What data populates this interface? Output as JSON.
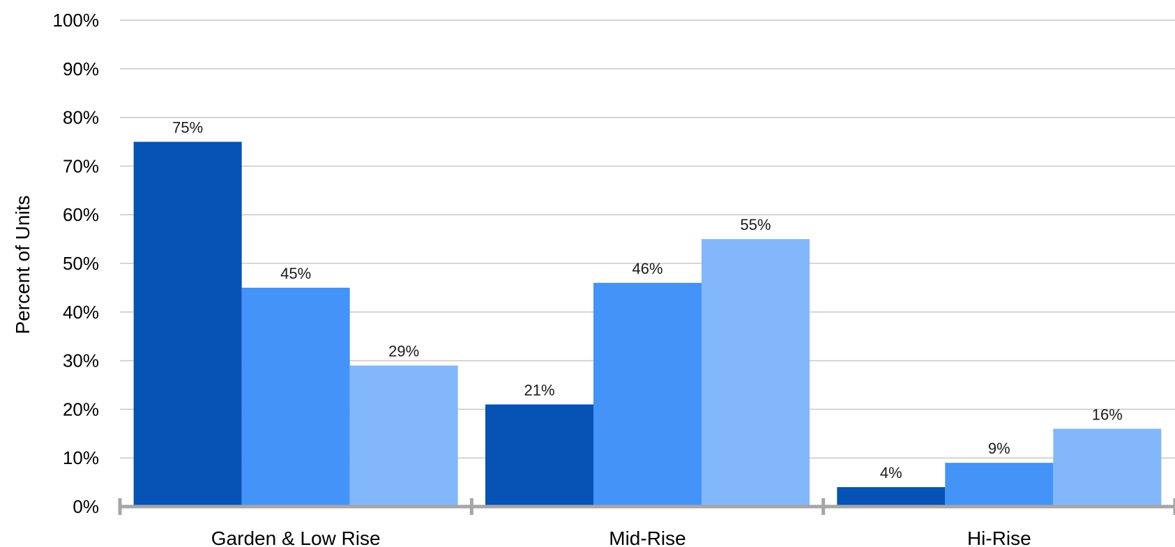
{
  "chart_data": {
    "type": "bar",
    "categories": [
      "Garden & Low Rise",
      "Mid-Rise",
      "Hi-Rise"
    ],
    "series": [
      {
        "color": "#0652B5",
        "values": [
          75,
          21,
          4
        ],
        "labels": [
          "75%",
          "21%",
          "4%"
        ]
      },
      {
        "color": "#4393F8",
        "values": [
          45,
          46,
          9
        ],
        "labels": [
          "45%",
          "46%",
          "9%"
        ]
      },
      {
        "color": "#82B8FB",
        "values": [
          29,
          55,
          16
        ],
        "labels": [
          "29%",
          "55%",
          "16%"
        ]
      }
    ],
    "title": "",
    "xlabel": "",
    "ylabel": "Percent of Units",
    "ylim": [
      0,
      100
    ],
    "yticks": [
      0,
      10,
      20,
      30,
      40,
      50,
      60,
      70,
      80,
      90,
      100
    ],
    "ytick_labels": [
      "0%",
      "10%",
      "20%",
      "30%",
      "40%",
      "50%",
      "60%",
      "70%",
      "80%",
      "90%",
      "100%"
    ],
    "grid": true,
    "legend": "none"
  }
}
